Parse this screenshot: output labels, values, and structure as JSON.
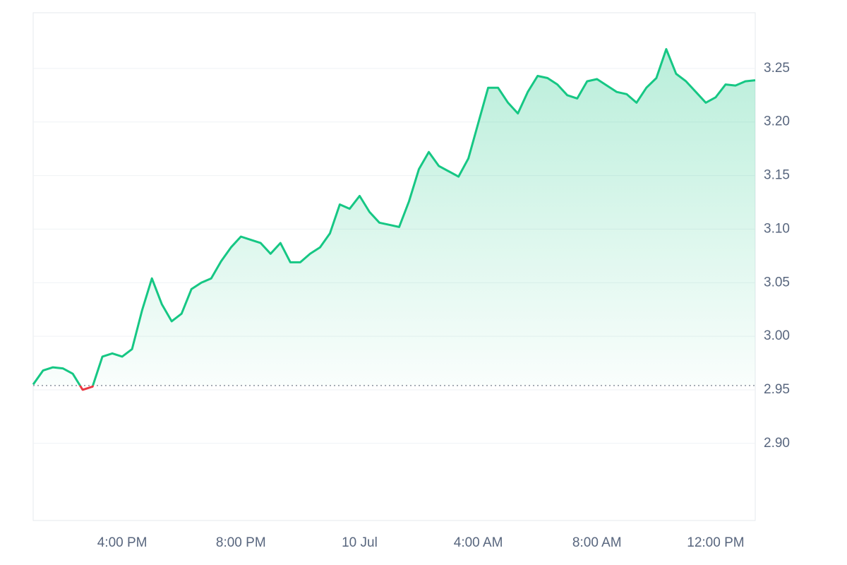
{
  "chart_data": {
    "type": "line",
    "x": [
      0,
      1,
      2,
      3,
      4,
      5,
      6,
      7,
      8,
      9,
      10,
      11,
      12,
      13,
      14,
      15,
      16,
      17,
      18,
      19,
      20,
      21,
      22,
      23,
      24,
      25,
      26,
      27,
      28,
      29,
      30,
      31,
      32,
      33,
      34,
      35,
      36,
      37,
      38,
      39,
      40,
      41,
      42,
      43,
      44,
      45,
      46,
      47,
      48,
      49,
      50,
      51,
      52,
      53,
      54,
      55,
      56,
      57,
      58,
      59,
      60,
      61,
      62,
      63,
      64,
      65,
      66,
      67,
      68,
      69,
      70,
      71,
      72,
      73
    ],
    "values": [
      2.955,
      2.968,
      2.971,
      2.97,
      2.965,
      2.95,
      2.953,
      2.981,
      2.984,
      2.981,
      2.988,
      3.024,
      3.054,
      3.03,
      3.014,
      3.021,
      3.044,
      3.05,
      3.054,
      3.07,
      3.083,
      3.093,
      3.09,
      3.087,
      3.077,
      3.087,
      3.069,
      3.069,
      3.077,
      3.083,
      3.096,
      3.123,
      3.119,
      3.131,
      3.116,
      3.106,
      3.104,
      3.102,
      3.126,
      3.156,
      3.172,
      3.159,
      3.154,
      3.149,
      3.166,
      3.199,
      3.232,
      3.232,
      3.218,
      3.208,
      3.228,
      3.243,
      3.241,
      3.235,
      3.225,
      3.222,
      3.238,
      3.24,
      3.234,
      3.228,
      3.226,
      3.218,
      3.232,
      3.241,
      3.268,
      3.245,
      3.238,
      3.228,
      3.218,
      3.223,
      3.235,
      3.234,
      3.238,
      3.239
    ],
    "color": "#16c784",
    "down_color": "#ea3943",
    "baseline": 2.954,
    "xlim": [
      0,
      73
    ],
    "xticks": [
      {
        "value": 9,
        "label": "4:00 PM"
      },
      {
        "value": 21,
        "label": "8:00 PM"
      },
      {
        "value": 33,
        "label": "10 Jul"
      },
      {
        "value": 45,
        "label": "4:00 AM"
      },
      {
        "value": 57,
        "label": "8:00 AM"
      },
      {
        "value": 69,
        "label": "12:00 PM"
      }
    ],
    "ylim": [
      2.828,
      3.302
    ],
    "yticks": [
      {
        "value": 2.9,
        "label": "2.90"
      },
      2.95,
      {
        "value": 3.0,
        "label": "3.00"
      },
      3.05,
      {
        "value": 3.1,
        "label": "3.10"
      },
      3.15,
      {
        "value": 3.2,
        "label": "3.20"
      },
      3.25
    ],
    "grid": true
  }
}
